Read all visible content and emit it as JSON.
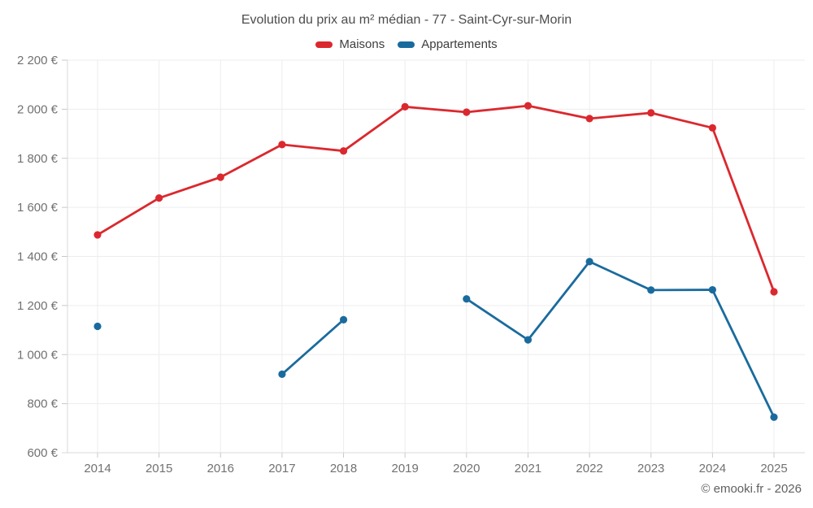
{
  "title": "Evolution du prix au m² médian - 77 - Saint-Cyr-sur-Morin",
  "footer": {
    "copyright": "© emooki.fr - 2026"
  },
  "colors": {
    "maisons": "#db282e",
    "appartements": "#1a6b9d",
    "grid": "#ededed",
    "axis": "#d9d9d9",
    "tick": "#c8c8c8",
    "axis_text": "#717171"
  },
  "chart_data": {
    "type": "line",
    "x": [
      2014,
      2015,
      2016,
      2017,
      2018,
      2019,
      2020,
      2021,
      2022,
      2023,
      2024,
      2025
    ],
    "series": [
      {
        "name": "Maisons",
        "color": "#db282e",
        "values": [
          1488,
          1638,
          1723,
          1856,
          1830,
          2010,
          1988,
          2014,
          1962,
          1985,
          1924,
          1256
        ]
      },
      {
        "name": "Appartements",
        "color": "#1a6b9d",
        "values": [
          1115,
          null,
          null,
          920,
          1142,
          null,
          1227,
          1060,
          1379,
          1263,
          1264,
          745
        ]
      }
    ],
    "ylim": [
      600,
      2200
    ],
    "ytick_step": 200,
    "ytick_labels": [
      "600 €",
      "800 €",
      "1 000 €",
      "1 200 €",
      "1 400 €",
      "1 600 €",
      "1 800 €",
      "2 000 €",
      "2 200 €"
    ],
    "ylabel": "",
    "xlabel": "",
    "grid": true,
    "legend_position": "top"
  }
}
